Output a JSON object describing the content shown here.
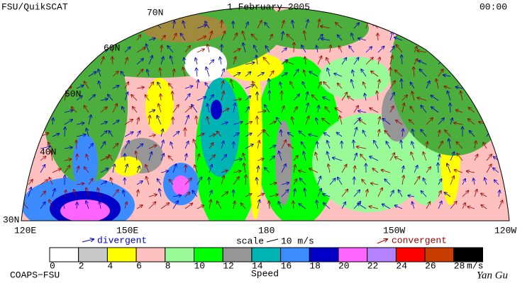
{
  "header": {
    "title": "FSU/QuikSCAT",
    "date": "1 February 2005",
    "time": "00:00"
  },
  "map": {
    "lat_labels": [
      "70N",
      "60N",
      "50N",
      "40N",
      "30N"
    ],
    "lon_labels": [
      "120E",
      "150E",
      "180",
      "150W",
      "120W"
    ]
  },
  "legend": {
    "divergent": "divergent",
    "scale_label": "scale",
    "scale_value": "10 m/s",
    "convergent": "convergent"
  },
  "colorbar": {
    "ticks": [
      0,
      2,
      4,
      6,
      8,
      10,
      12,
      14,
      16,
      18,
      20,
      22,
      24,
      26,
      28
    ],
    "unit": "m/s",
    "label": "Speed",
    "colors": [
      "#ffffff",
      "#c8c8c8",
      "#ffff00",
      "#ffc0c0",
      "#98fb98",
      "#00ff00",
      "#969696",
      "#00b4b4",
      "#3c8cff",
      "#0000c8",
      "#ff64ff",
      "#b482ff",
      "#ff0000",
      "#c83c00",
      "#000000"
    ]
  },
  "footer": {
    "credit": "COAPS−FSU",
    "signature": "Yan Gu"
  }
}
